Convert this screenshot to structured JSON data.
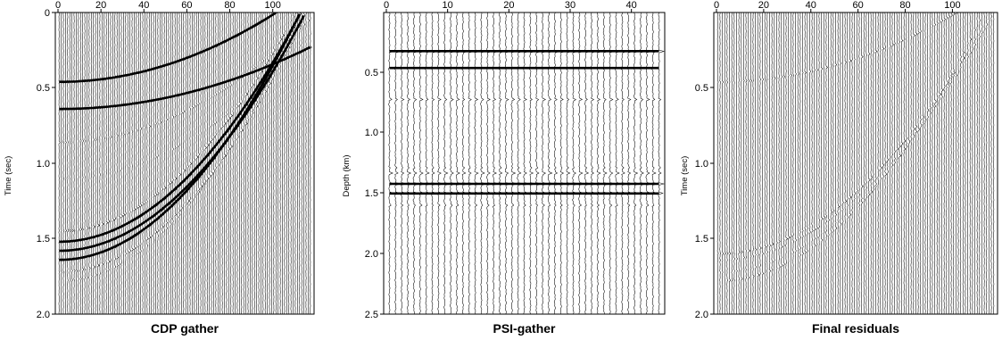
{
  "chart_data": [
    {
      "type": "heatmap",
      "plot_kind": "seismic wiggle-trace section",
      "title": "CDP gather",
      "xlabel": "",
      "ylabel": "Time (sec)",
      "xlim": [
        0,
        118
      ],
      "ylim": [
        0,
        2.0
      ],
      "y_inverted": true,
      "x_ticks": [
        "0",
        "20",
        "40",
        "60",
        "80",
        "100"
      ],
      "y_ticks": [
        "0",
        "0.5",
        "1.0",
        "1.5",
        "2.0"
      ],
      "trace_count": 118,
      "events": [
        {
          "name": "flat",
          "t0": 0.46,
          "curv": 3e-05,
          "strength": 1.0
        },
        {
          "name": "flat",
          "t0": 0.64,
          "curv": 2e-05,
          "strength": 0.9
        },
        {
          "name": "hyperbola",
          "t0": 0.86,
          "curv": 6e-05,
          "strength": 0.45
        },
        {
          "name": "hyperbola",
          "t0": 1.1,
          "curv": 7e-05,
          "strength": 0.25
        },
        {
          "name": "hyperbola",
          "t0": 1.45,
          "curv": 0.00012,
          "strength": 0.8
        },
        {
          "name": "hyperbola",
          "t0": 1.52,
          "curv": 0.00012,
          "strength": 0.9
        },
        {
          "name": "hyperbola",
          "t0": 1.58,
          "curv": 0.00012,
          "strength": 1.0
        },
        {
          "name": "hyperbola",
          "t0": 1.64,
          "curv": 0.00013,
          "strength": 1.0
        },
        {
          "name": "hyperbola",
          "t0": 1.72,
          "curv": 0.00013,
          "strength": 0.6
        },
        {
          "name": "hyperbola",
          "t0": 1.78,
          "curv": 0.00014,
          "strength": 0.4
        }
      ]
    },
    {
      "type": "heatmap",
      "plot_kind": "seismic wiggle-trace section",
      "title": "PSI-gather",
      "xlabel": "",
      "ylabel": "Depth (km)",
      "xlim": [
        0,
        45
      ],
      "ylim": [
        0,
        2.5
      ],
      "y_inverted": true,
      "x_ticks": [
        "0",
        "10",
        "20",
        "30",
        "40"
      ],
      "y_ticks": [
        "0.5",
        "1.0",
        "1.5",
        "2.0",
        "2.5"
      ],
      "trace_count": 45,
      "events": [
        {
          "name": "flat",
          "t0": 0.32,
          "curv": 0,
          "strength": 1.0
        },
        {
          "name": "flat",
          "t0": 0.46,
          "curv": 0,
          "strength": 1.0
        },
        {
          "name": "flat",
          "t0": 0.72,
          "curv": 0,
          "strength": 0.4
        },
        {
          "name": "flat",
          "t0": 0.76,
          "curv": 0,
          "strength": 0.4
        },
        {
          "name": "flat",
          "t0": 0.96,
          "curv": 0,
          "strength": 0.3
        },
        {
          "name": "flat",
          "t0": 1.29,
          "curv": 0,
          "strength": 0.5
        },
        {
          "name": "flat",
          "t0": 1.33,
          "curv": 0,
          "strength": 0.5
        },
        {
          "name": "flat",
          "t0": 1.37,
          "curv": 0,
          "strength": 0.5
        },
        {
          "name": "flat",
          "t0": 1.42,
          "curv": 0,
          "strength": 1.0
        },
        {
          "name": "flat",
          "t0": 1.5,
          "curv": 0,
          "strength": 1.0
        },
        {
          "name": "flat",
          "t0": 1.56,
          "curv": 0,
          "strength": 0.5
        },
        {
          "name": "flat",
          "t0": 1.6,
          "curv": 0,
          "strength": 0.4
        }
      ]
    },
    {
      "type": "heatmap",
      "plot_kind": "seismic wiggle-trace section",
      "title": "Final residuals",
      "xlabel": "",
      "ylabel": "Time (sec)",
      "xlim": [
        0,
        118
      ],
      "ylim": [
        0,
        2.0
      ],
      "y_inverted": true,
      "x_ticks": [
        "0",
        "20",
        "40",
        "60",
        "80",
        "100"
      ],
      "y_ticks": [
        "0.5",
        "1.0",
        "1.5",
        "2.0"
      ],
      "trace_count": 118,
      "events": [
        {
          "name": "flat",
          "t0": 0.46,
          "curv": 3e-05,
          "strength": 0.5
        },
        {
          "name": "hyperbola",
          "t0": 1.6,
          "curv": 0.00012,
          "strength": 0.6
        },
        {
          "name": "hyperbola",
          "t0": 1.64,
          "curv": 0.00012,
          "strength": 0.4
        },
        {
          "name": "hyperbola",
          "t0": 1.72,
          "curv": 0.00013,
          "strength": 0.3
        },
        {
          "name": "hyperbola",
          "t0": 1.78,
          "curv": 0.00014,
          "strength": 0.5
        }
      ]
    }
  ]
}
